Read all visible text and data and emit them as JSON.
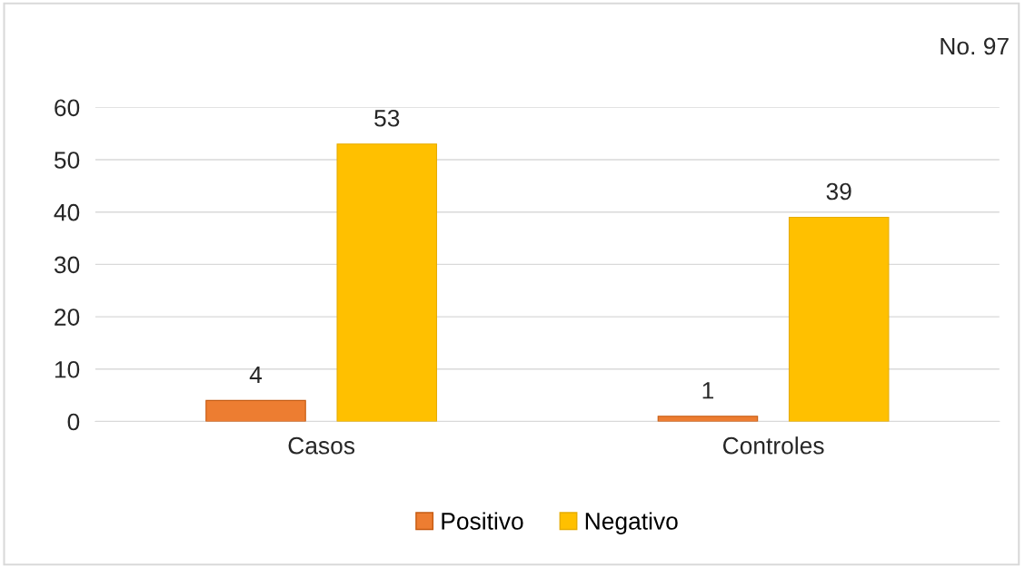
{
  "chart_data": {
    "type": "bar",
    "categories": [
      "Casos",
      "Controles"
    ],
    "series": [
      {
        "name": "Positivo",
        "color": "#ed7d31",
        "values": [
          4,
          1
        ]
      },
      {
        "name": "Negativo",
        "color": "#ffc000",
        "values": [
          53,
          39
        ]
      }
    ],
    "ylim": [
      0,
      60
    ],
    "yticks": [
      0,
      10,
      20,
      30,
      40,
      50,
      60
    ],
    "grid": "y",
    "legend": "bottom",
    "data_labels": true,
    "annotations": [
      "No. 97"
    ]
  }
}
